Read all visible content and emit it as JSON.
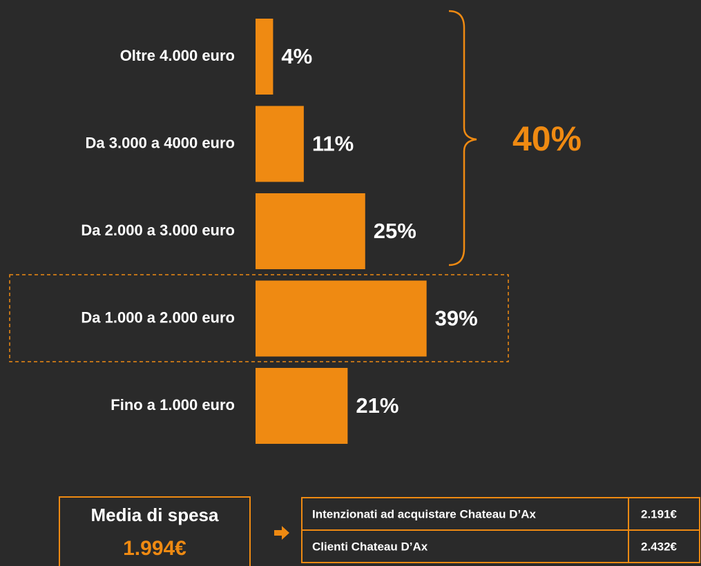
{
  "chart_data": {
    "type": "bar",
    "orientation": "horizontal",
    "categories": [
      "Oltre 4.000 euro",
      "Da 3.000 a 4000 euro",
      "Da 2.000 a 3.000 euro",
      "Da 1.000 a 2.000 euro",
      "Fino a 1.000 euro"
    ],
    "values": [
      4,
      11,
      25,
      39,
      21
    ],
    "value_labels": [
      "4%",
      "11%",
      "25%",
      "39%",
      "21%"
    ],
    "color": "#ef8a12",
    "annotation": "40%"
  },
  "summary": {
    "title": "Media di spesa",
    "value": "1.994€"
  },
  "table": {
    "rows": [
      [
        "Intenzionati ad acquistare Chateau D’Ax",
        "2.191€"
      ],
      [
        "Clienti Chateau D’Ax",
        "2.432€"
      ]
    ]
  }
}
